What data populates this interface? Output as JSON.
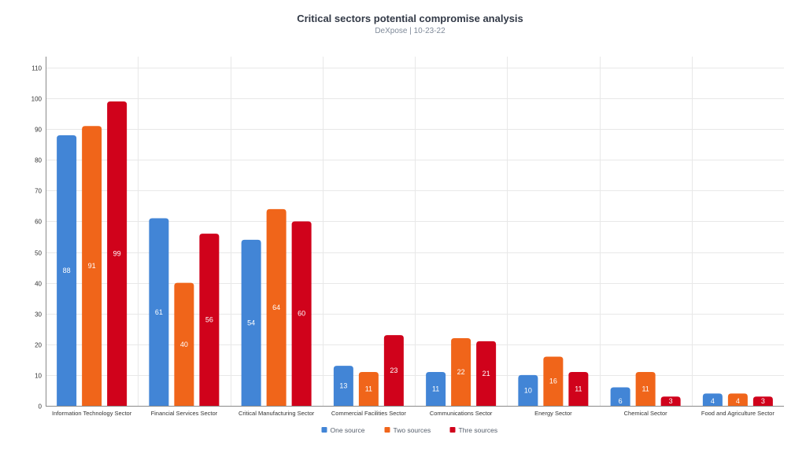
{
  "chart_data": {
    "type": "bar",
    "title": "Critical sectors potential compromise analysis",
    "subtitle": "DeXpose | 10-23-22",
    "categories": [
      "Information Technology Sector",
      "Financial Services Sector",
      "Critical Manufacturing Sector",
      "Commercial Facilities Sector",
      "Communications Sector",
      "Energy Sector",
      "Chemical Sector",
      "Food and Agriculture Sector"
    ],
    "series": [
      {
        "name": "One source",
        "color": "#4285d6",
        "values": [
          88,
          61,
          54,
          13,
          11,
          10,
          6,
          4
        ]
      },
      {
        "name": "Two sources",
        "color": "#f0651a",
        "values": [
          91,
          40,
          64,
          11,
          22,
          16,
          11,
          4
        ]
      },
      {
        "name": "Thre sources",
        "color": "#d0021b",
        "values": [
          99,
          56,
          60,
          23,
          21,
          11,
          3,
          3
        ]
      }
    ],
    "yticks": [
      "0",
      "10",
      "20",
      "30",
      "40",
      "50",
      "60",
      "70",
      "80",
      "90",
      "100",
      "110"
    ],
    "ylim": [
      0,
      110
    ],
    "xlabel": "",
    "ylabel": "",
    "grid": true,
    "legend_position": "bottom-center"
  }
}
